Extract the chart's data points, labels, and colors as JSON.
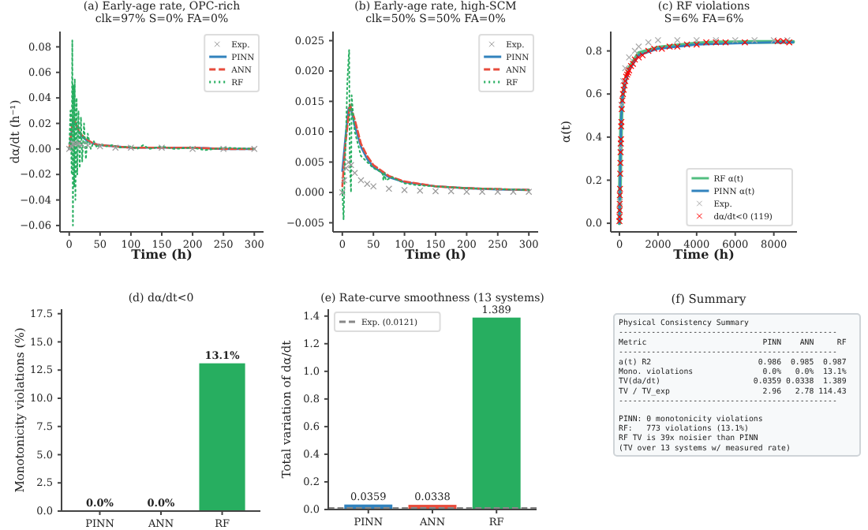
{
  "chart_data": [
    {
      "type": "line",
      "title": "(a) Early-age rate, OPC-rich",
      "subtitle": "clk=97% S=0% FA=0%",
      "xlabel": "Time (h)",
      "ylabel": "dα/dt (h⁻¹)",
      "xlim": [
        -15,
        315
      ],
      "ylim": [
        -0.065,
        0.092
      ],
      "xticks": [
        0,
        50,
        100,
        150,
        200,
        250,
        300
      ],
      "yticks": [
        {
          "value": -0.06,
          "label": "−0.06"
        },
        {
          "value": -0.04,
          "label": "−0.04"
        },
        {
          "value": -0.02,
          "label": "−0.02"
        },
        {
          "value": 0,
          "label": "0.00"
        },
        0.02,
        0.04,
        0.06,
        0.08
      ],
      "legend": "top right",
      "series": [
        {
          "name": "Exp.",
          "type": "scatter",
          "marker": "cross",
          "color": "#999999",
          "x": [
            0,
            3,
            6,
            10,
            15,
            20,
            30,
            50,
            75,
            100,
            150,
            200,
            250,
            300
          ],
          "values": [
            0,
            0.002,
            0.004,
            0.004,
            0.004,
            0.003,
            0.003,
            0.002,
            0.001,
            0.001,
            0.001,
            0,
            0,
            0
          ]
        },
        {
          "name": "PINN",
          "type": "line",
          "line_style": "solid",
          "color": "#3182bd",
          "x": [
            0,
            3,
            6,
            10,
            15,
            20,
            30,
            40,
            50,
            75,
            100,
            150,
            200,
            250,
            300
          ],
          "values": [
            0,
            0.01,
            0.022,
            0.02,
            0.014,
            0.01,
            0.006,
            0.004,
            0.003,
            0.002,
            0.001,
            0.001,
            0.001,
            0,
            0
          ]
        },
        {
          "name": "ANN",
          "type": "line",
          "line_style": "dashed",
          "color": "#e74c3c",
          "x": [
            0,
            3,
            6,
            10,
            15,
            20,
            30,
            40,
            50,
            75,
            100,
            150,
            200,
            250,
            300
          ],
          "values": [
            0,
            0.011,
            0.023,
            0.021,
            0.015,
            0.011,
            0.007,
            0.004,
            0.003,
            0.002,
            0.001,
            0.001,
            0.001,
            0,
            0
          ]
        },
        {
          "name": "RF",
          "type": "line",
          "line_style": "dotted",
          "color": "#27ae60",
          "x": [
            0,
            2,
            4,
            5,
            6,
            7,
            8,
            9,
            10,
            12,
            13,
            15,
            17,
            19,
            21,
            24,
            27,
            30,
            35,
            40,
            45,
            50,
            60,
            70,
            80,
            100,
            110,
            120,
            130,
            150,
            170,
            200,
            220,
            250,
            300
          ],
          "values": [
            0,
            0.03,
            -0.02,
            0.085,
            -0.06,
            0.05,
            -0.03,
            0.055,
            -0.04,
            0.04,
            -0.02,
            0.03,
            -0.015,
            0.025,
            -0.01,
            0.02,
            -0.008,
            0.012,
            0,
            0.006,
            0.001,
            0.004,
            0.002,
            0.003,
            0.001,
            0.002,
            0,
            0.003,
            0,
            0.002,
            0,
            0.001,
            -0.001,
            0.001,
            0
          ]
        }
      ]
    },
    {
      "type": "line",
      "title": "(b) Early-age rate, high-SCM",
      "subtitle": "clk=50% S=50% FA=0%",
      "xlabel": "Time (h)",
      "xlim": [
        -15,
        315
      ],
      "ylim": [
        -0.0065,
        0.0265
      ],
      "xticks": [
        0,
        50,
        100,
        150,
        200,
        250,
        300
      ],
      "yticks": [
        {
          "value": -0.005,
          "label": "−0.005"
        },
        {
          "value": 0,
          "label": "0.000"
        },
        0.005,
        {
          "value": 0.01,
          "label": "0.010"
        },
        0.015,
        {
          "value": 0.02,
          "label": "0.020"
        },
        0.025
      ],
      "legend": "top right",
      "series": [
        {
          "name": "Exp.",
          "type": "scatter",
          "marker": "cross",
          "color": "#999999",
          "x": [
            0,
            3,
            6,
            10,
            14,
            20,
            30,
            40,
            50,
            75,
            100,
            125,
            150,
            175,
            200,
            225,
            250,
            275,
            300
          ],
          "values": [
            0,
            0.002,
            0.004,
            0.005,
            0.0045,
            0.0032,
            0.002,
            0.0014,
            0.001,
            0.0006,
            0.0004,
            0.0003,
            0.0002,
            0.0002,
            0.0001,
            0.0001,
            0.0001,
            0.0001,
            0.0001
          ]
        },
        {
          "name": "PINN",
          "type": "line",
          "line_style": "solid",
          "color": "#3182bd",
          "x": [
            0,
            5,
            10,
            13,
            20,
            30,
            40,
            50,
            75,
            100,
            150,
            200,
            250,
            300
          ],
          "values": [
            0.0035,
            0.009,
            0.0138,
            0.0142,
            0.011,
            0.0075,
            0.0055,
            0.0042,
            0.0025,
            0.0017,
            0.001,
            0.0007,
            0.0005,
            0.0004
          ]
        },
        {
          "name": "ANN",
          "type": "line",
          "line_style": "dashed",
          "color": "#e74c3c",
          "x": [
            0,
            5,
            12,
            20,
            30,
            40,
            50,
            75,
            100,
            150,
            200,
            300
          ],
          "values": [
            0.001,
            0.008,
            0.0145,
            0.012,
            0.008,
            0.006,
            0.0045,
            0.0027,
            0.0018,
            0.001,
            0.0007,
            0.0004
          ]
        },
        {
          "name": "RF",
          "type": "line",
          "line_style": "dotted",
          "color": "#27ae60",
          "x": [
            0,
            2,
            4,
            6,
            8,
            10,
            11,
            12,
            14,
            15,
            18,
            20,
            25,
            30,
            40,
            50,
            60,
            65,
            66,
            68,
            70,
            80,
            100,
            120,
            150,
            200,
            300
          ],
          "values": [
            0.0005,
            -0.0045,
            0.004,
            0.01,
            0.018,
            0.022,
            0.0235,
            0.005,
            0,
            0.016,
            0.012,
            0.01,
            0.008,
            0.006,
            0.005,
            0.004,
            0.0035,
            0.003,
            0.002,
            0.0032,
            0.002,
            0.0025,
            0.0015,
            0.0012,
            0.001,
            0.0007,
            0.0004
          ]
        }
      ]
    },
    {
      "type": "line",
      "title": "(c) RF violations",
      "subtitle": "S=6% FA=6%",
      "xlabel": "Time (h)",
      "ylabel": "α(t)",
      "xlim": [
        -450,
        9200
      ],
      "ylim": [
        -0.04,
        0.89
      ],
      "xticks": [
        0,
        2000,
        4000,
        6000,
        8000
      ],
      "yticks": [
        {
          "value": 0,
          "label": "0.0"
        },
        0.2,
        0.4,
        0.6,
        0.8
      ],
      "legend": "bottom right",
      "series": [
        {
          "name": "RF α(t)",
          "type": "line",
          "line_style": "solid",
          "color": "#52be80",
          "x": [
            0,
            50,
            100,
            150,
            300,
            500,
            1000,
            2000,
            3000,
            4000,
            5000,
            6000,
            7000,
            8000,
            9000
          ],
          "values": [
            0,
            0.3,
            0.5,
            0.58,
            0.66,
            0.72,
            0.79,
            0.815,
            0.825,
            0.835,
            0.84,
            0.84,
            0.842,
            0.842,
            0.842
          ]
        },
        {
          "name": "PINN α(t)",
          "type": "line",
          "line_style": "solid",
          "color": "#3182bd",
          "x": [
            0,
            50,
            100,
            150,
            300,
            500,
            1000,
            2000,
            3000,
            4000,
            6000,
            8000,
            9000
          ],
          "values": [
            0,
            0.3,
            0.5,
            0.58,
            0.65,
            0.71,
            0.78,
            0.81,
            0.82,
            0.83,
            0.835,
            0.84,
            0.84
          ]
        },
        {
          "name": "Exp.",
          "type": "scatter",
          "marker": "cross",
          "color": "#aaaaaa",
          "x": [
            20,
            60,
            100,
            200,
            300,
            500,
            800,
            1000,
            1500,
            2000,
            3000,
            4000,
            5000,
            6000,
            7000,
            8000,
            8700
          ],
          "values": [
            0.1,
            0.35,
            0.55,
            0.66,
            0.72,
            0.77,
            0.8,
            0.82,
            0.84,
            0.85,
            0.85,
            0.85,
            0.85,
            0.85,
            0.85,
            0.85,
            0.85
          ]
        },
        {
          "name": "dα/dt<0 (119)",
          "type": "scatter",
          "marker": "cross",
          "color": "#ff0000",
          "x": [
            0,
            5,
            10,
            15,
            20,
            30,
            40,
            50,
            60,
            70,
            80,
            90,
            100,
            120,
            150,
            180,
            220,
            260,
            300,
            350,
            400,
            450,
            500,
            600,
            700,
            800,
            1000,
            1200,
            1500,
            1800,
            2200,
            2600,
            3000,
            3500,
            4000,
            4500,
            5000,
            5500,
            6500,
            8200,
            8500,
            8800
          ],
          "values": [
            0.01,
            0.03,
            0.06,
            0.09,
            0.13,
            0.16,
            0.23,
            0.28,
            0.33,
            0.37,
            0.39,
            0.45,
            0.47,
            0.53,
            0.57,
            0.6,
            0.62,
            0.64,
            0.66,
            0.68,
            0.69,
            0.7,
            0.71,
            0.73,
            0.74,
            0.76,
            0.77,
            0.78,
            0.8,
            0.81,
            0.81,
            0.82,
            0.82,
            0.83,
            0.83,
            0.84,
            0.84,
            0.84,
            0.84,
            0.845,
            0.845,
            0.84
          ]
        }
      ]
    },
    {
      "type": "bar",
      "title": "(d) dα/dt<0",
      "ylabel": "Monotonicity violations (%)",
      "categories": [
        "PINN",
        "ANN",
        "RF"
      ],
      "values": [
        0,
        0,
        13.1
      ],
      "value_labels": [
        "0.0%",
        "0.0%",
        "13.1%"
      ],
      "colors": [
        "#3182bd",
        "#e74c3c",
        "#27ae60"
      ],
      "ylim": [
        0,
        17.9
      ],
      "yticks": [
        {
          "value": 0,
          "label": "0.0"
        },
        2.5,
        {
          "value": 5,
          "label": "5.0"
        },
        7.5,
        {
          "value": 10,
          "label": "10.0"
        },
        12.5,
        {
          "value": 15,
          "label": "15.0"
        },
        17.5
      ]
    },
    {
      "type": "bar",
      "title": "(e) Rate-curve smoothness (13 systems)",
      "ylabel": "Total variation of dα/dt",
      "categories": [
        "PINN",
        "ANN",
        "RF"
      ],
      "values": [
        0.0359,
        0.0338,
        1.389
      ],
      "data_labels": true,
      "colors": [
        "#3182bd",
        "#e74c3c",
        "#27ae60"
      ],
      "ylim": [
        0,
        1.45
      ],
      "yticks": [
        {
          "value": 0,
          "label": "0.0"
        },
        0.2,
        0.4,
        0.6,
        0.8,
        {
          "value": 1,
          "label": "1.0"
        },
        1.2,
        1.4
      ],
      "legend": "top left",
      "ref_lines": [
        {
          "axis": "y",
          "value": 0.0121,
          "label": "Exp. (0.0121)",
          "color": "#888888",
          "line_style": "dashed"
        }
      ]
    },
    {
      "type": "other",
      "title": "(f) Summary",
      "annotations": [
        "Physical Consistency Summary",
        "-----------------------------------------------",
        "Metric                         PINN    ANN     RF",
        "-----------------------------------------------",
        "a(t) R2                       0.986  0.985  0.987",
        "Mono. violations               0.0%   0.0%  13.1%",
        "TV(da/dt)                    0.0359 0.0338  1.389",
        "TV / TV_exp                    2.96   2.78 114.43",
        "-----------------------------------------------",
        "PINN: 0 monotonicity violations",
        "RF:   773 violations (13.1%)",
        "RF TV is 39x noisier than PINN",
        "(TV over 13 systems w/ measured rate)"
      ]
    }
  ]
}
